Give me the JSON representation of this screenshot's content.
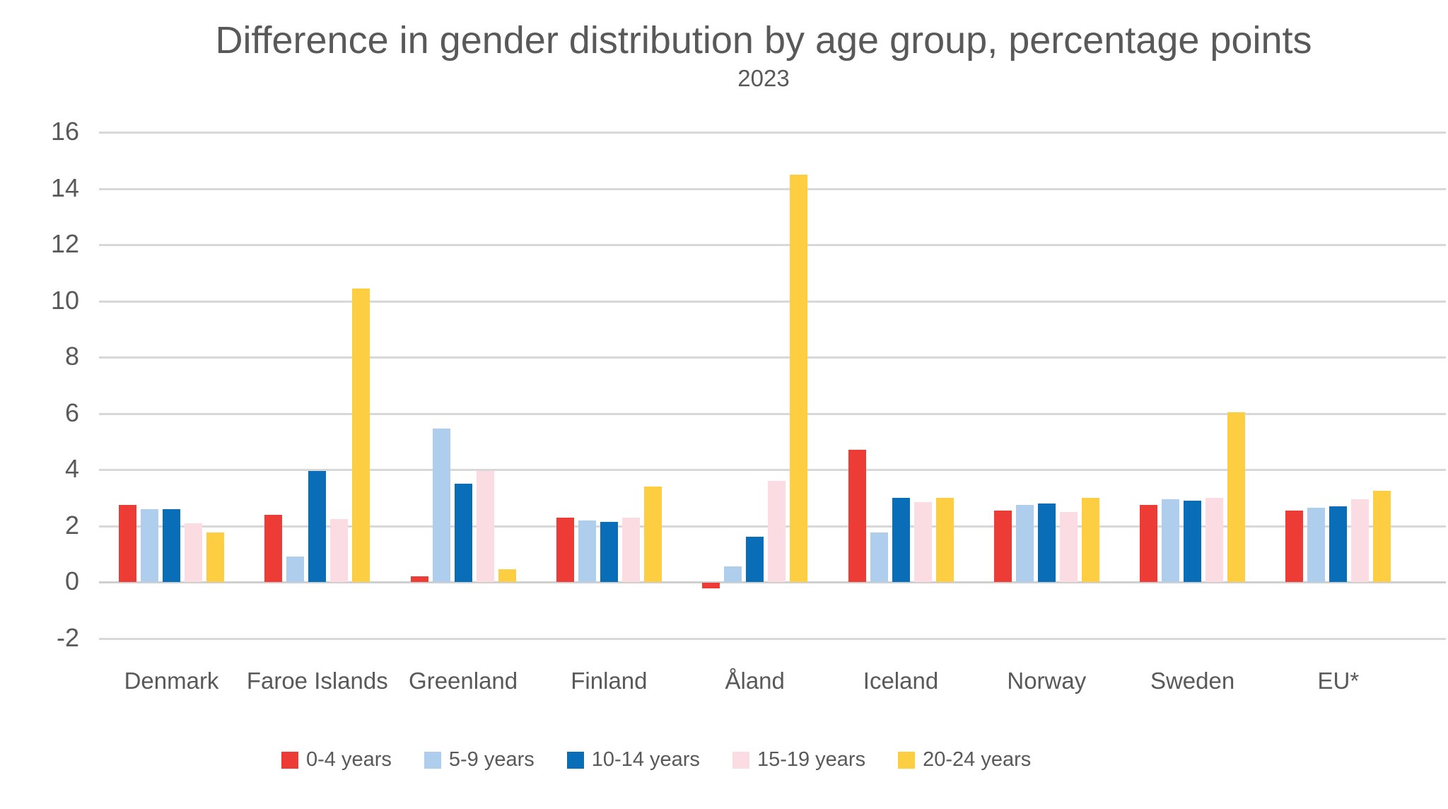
{
  "chart_data": {
    "type": "bar",
    "title": "Difference in gender distribution by age group, percentage points",
    "subtitle": "2023",
    "categories": [
      "Denmark",
      "Faroe Islands",
      "Greenland",
      "Finland",
      "Åland",
      "Iceland",
      "Norway",
      "Sweden",
      "EU*"
    ],
    "series": [
      {
        "name": "0-4 years",
        "color": "#ED3B35",
        "values": [
          2.75,
          2.4,
          0.2,
          2.3,
          -0.2,
          4.7,
          2.55,
          2.75,
          2.55
        ]
      },
      {
        "name": "5-9 years",
        "color": "#AFCDEC",
        "values": [
          2.6,
          0.9,
          5.45,
          2.2,
          0.55,
          1.75,
          2.75,
          2.95,
          2.65
        ]
      },
      {
        "name": "10-14 years",
        "color": "#0A6DB7",
        "values": [
          2.6,
          3.95,
          3.5,
          2.15,
          1.6,
          3.0,
          2.8,
          2.9,
          2.7
        ]
      },
      {
        "name": "15-19 years",
        "color": "#FBDCE2",
        "values": [
          2.1,
          2.25,
          3.95,
          2.3,
          3.6,
          2.85,
          2.5,
          3.0,
          2.95
        ]
      },
      {
        "name": "20-24 years",
        "color": "#FDCE42",
        "values": [
          1.75,
          10.45,
          0.45,
          3.4,
          14.5,
          3.0,
          3.0,
          6.05,
          3.25
        ]
      }
    ],
    "ylim": [
      -2,
      16
    ],
    "ytick_step": 2,
    "xlabel": "",
    "ylabel": "",
    "grid": true,
    "gridline_color": "#d8d8d8",
    "text_color": "#595959",
    "background_color": "#ffffff",
    "legend_position": "bottom"
  }
}
